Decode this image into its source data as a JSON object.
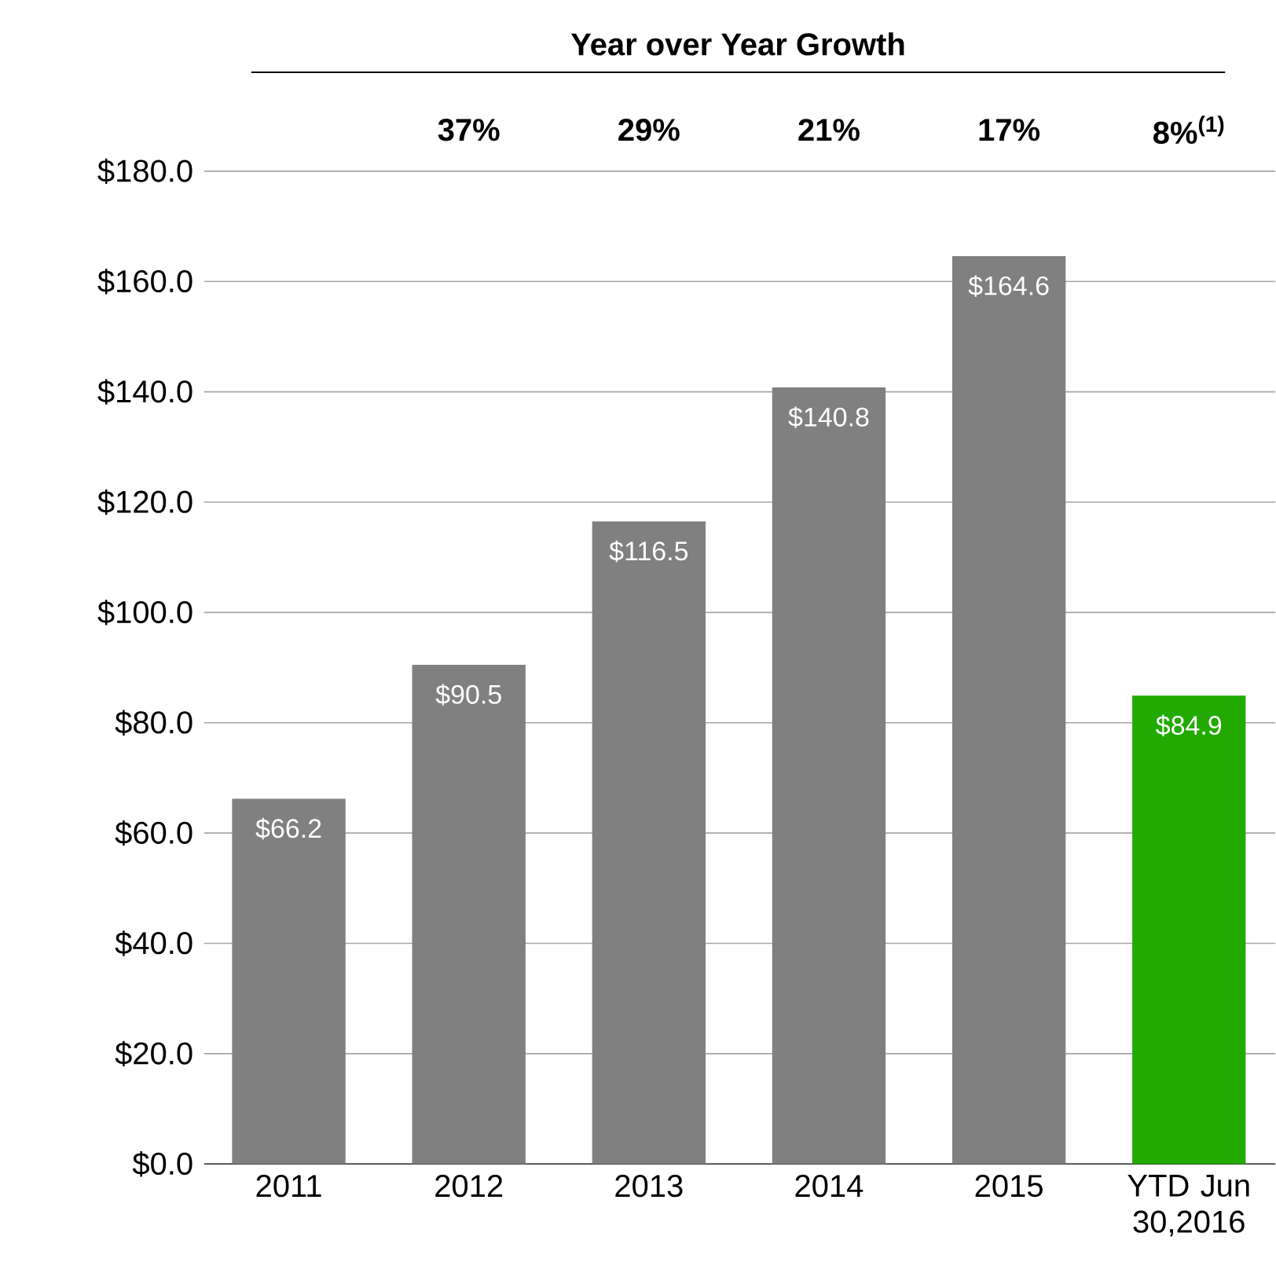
{
  "chart_data": {
    "type": "bar",
    "title": "Year over Year Growth",
    "categories": [
      "2011",
      "2012",
      "2013",
      "2014",
      "2015",
      "YTD Jun 30,2016"
    ],
    "values": [
      66.2,
      90.5,
      116.5,
      140.8,
      164.6,
      84.9
    ],
    "colors": [
      "#808080",
      "#808080",
      "#808080",
      "#808080",
      "#808080",
      "#22aa00"
    ],
    "value_labels": [
      "$66.2",
      "$90.5",
      "$116.5",
      "$140.8",
      "$164.6",
      "$84.9"
    ],
    "annotations": [
      "37%",
      "29%",
      "21%",
      "17%",
      "8%$^{(1)}$"
    ],
    "ylim": [
      0,
      180
    ],
    "yticks": [
      {
        "value": 0,
        "label": "$0.0"
      },
      {
        "value": 20,
        "label": "$20.0"
      },
      {
        "value": 40,
        "label": "$40.0"
      },
      {
        "value": 60,
        "label": "$60.0"
      },
      {
        "value": 80,
        "label": "$80.0"
      },
      {
        "value": 100,
        "label": "$100.0"
      },
      {
        "value": 120,
        "label": "$120.0"
      },
      {
        "value": 140,
        "label": "$140.0"
      },
      {
        "value": 160,
        "label": "$160.0"
      },
      {
        "value": 180,
        "label": "$180.0"
      }
    ],
    "grid": "y"
  }
}
